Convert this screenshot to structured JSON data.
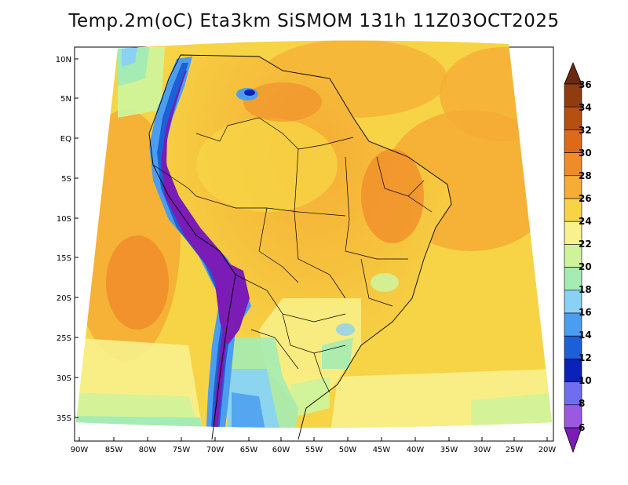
{
  "title": "Temp.2m(oC) Eta3km SiSMOM 131h 11Z03OCT2025",
  "map": {
    "lat_range": [
      -38,
      12
    ],
    "lon_range": [
      -90,
      -20
    ],
    "lat_ticks": [
      "10N",
      "5N",
      "EQ",
      "5S",
      "10S",
      "15S",
      "20S",
      "25S",
      "30S",
      "35S"
    ],
    "lon_ticks": [
      "90W",
      "85W",
      "80W",
      "75W",
      "70W",
      "65W",
      "60W",
      "55W",
      "50W",
      "45W",
      "40W",
      "35W",
      "30W",
      "25W",
      "20W"
    ]
  },
  "colorbar": {
    "labels": [
      "36",
      "34",
      "32",
      "30",
      "28",
      "26",
      "24",
      "22",
      "20",
      "18",
      "16",
      "14",
      "12",
      "10",
      "8",
      "6"
    ],
    "colors": [
      "#6b2a0f",
      "#8e3c10",
      "#b64f12",
      "#dd6a18",
      "#f08b2a",
      "#f5ad35",
      "#f7d445",
      "#f8f18c",
      "#cff39a",
      "#a4ecb3",
      "#8ad1f5",
      "#4b9df0",
      "#1c5fd6",
      "#0a22b8",
      "#6f6ef0",
      "#9b58e0",
      "#7a1cb5"
    ]
  }
}
